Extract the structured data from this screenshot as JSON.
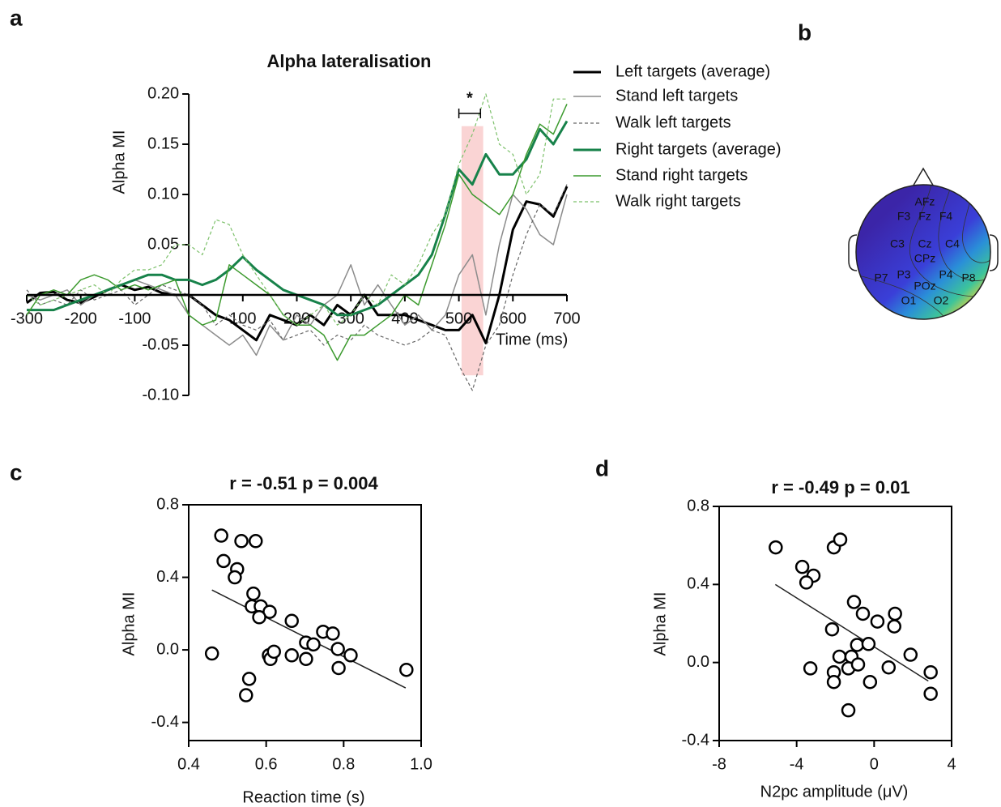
{
  "panels": [
    "a",
    "b",
    "c",
    "d"
  ],
  "topomap": {
    "electrodes": [
      "AFz",
      "F3",
      "Fz",
      "F4",
      "C3",
      "Cz",
      "C4",
      "CPz",
      "P7",
      "P3",
      "P4",
      "P8",
      "POz",
      "O1",
      "O2"
    ]
  },
  "chart_data": [
    {
      "type": "line",
      "title": "Alpha lateralisation",
      "y_label": "Alpha MI",
      "x_label": "Time (ms)",
      "x": [
        -300,
        -275,
        -250,
        -225,
        -200,
        -175,
        -150,
        -125,
        -100,
        -75,
        -50,
        -25,
        0,
        25,
        50,
        75,
        100,
        125,
        150,
        175,
        200,
        225,
        250,
        275,
        300,
        325,
        350,
        375,
        400,
        425,
        450,
        475,
        500,
        525,
        550,
        575,
        600,
        625,
        650,
        675,
        700
      ],
      "series": [
        {
          "name": "Left targets (average)",
          "color": "#000000",
          "width": 3,
          "dash": false,
          "values": [
            -0.008,
            0.002,
            0.003,
            -0.005,
            -0.008,
            -0.002,
            0.005,
            0.01,
            0.005,
            0.008,
            0.002,
            0,
            0,
            -0.01,
            -0.02,
            -0.025,
            -0.035,
            -0.045,
            -0.02,
            -0.025,
            -0.03,
            -0.02,
            -0.03,
            -0.01,
            -0.02,
            0,
            -0.02,
            -0.02,
            -0.02,
            -0.025,
            -0.03,
            -0.035,
            -0.035,
            -0.02,
            -0.048,
            0,
            0.065,
            0.093,
            0.09,
            0.078,
            0.108
          ]
        },
        {
          "name": "Stand left targets",
          "color": "#8c8c8c",
          "width": 1.5,
          "dash": false,
          "values": [
            0,
            -0.005,
            0,
            0.005,
            -0.01,
            0,
            0.005,
            0.01,
            0.015,
            0.01,
            0.005,
            0,
            -0.02,
            -0.03,
            -0.04,
            -0.05,
            -0.04,
            -0.06,
            -0.03,
            -0.045,
            -0.02,
            -0.03,
            -0.01,
            0,
            0.03,
            -0.01,
            0.01,
            -0.01,
            -0.03,
            -0.02,
            -0.035,
            -0.02,
            0.02,
            0.04,
            -0.02,
            0.05,
            0.1,
            0.085,
            0.06,
            0.05,
            0.1
          ]
        },
        {
          "name": "Walk left targets",
          "color": "#666666",
          "width": 1.2,
          "dash": true,
          "values": [
            0.005,
            -0.01,
            -0.005,
            -0.01,
            0.005,
            -0.005,
            0,
            0.005,
            -0.01,
            0,
            0.01,
            0.005,
            0,
            -0.01,
            -0.03,
            -0.02,
            -0.03,
            -0.035,
            -0.025,
            -0.045,
            -0.04,
            -0.035,
            -0.05,
            -0.04,
            -0.045,
            -0.03,
            -0.04,
            -0.045,
            -0.05,
            -0.045,
            -0.035,
            -0.04,
            -0.07,
            -0.095,
            -0.05,
            -0.03,
            0.02,
            0.06,
            0.09,
            0.08,
            0.11
          ]
        },
        {
          "name": "Right targets (average)",
          "color": "#17824a",
          "width": 3,
          "dash": false,
          "values": [
            -0.015,
            -0.015,
            -0.015,
            -0.01,
            -0.005,
            0,
            0.005,
            0.01,
            0.015,
            0.02,
            0.02,
            0.015,
            0.015,
            0.01,
            0.015,
            0.025,
            0.038,
            0.025,
            0.015,
            0.005,
            0,
            -0.005,
            -0.01,
            -0.02,
            -0.02,
            -0.015,
            -0.01,
            0,
            0.01,
            0.02,
            0.04,
            0.08,
            0.125,
            0.11,
            0.14,
            0.12,
            0.12,
            0.135,
            0.165,
            0.15,
            0.173
          ]
        },
        {
          "name": "Stand right targets",
          "color": "#3c9a2e",
          "width": 1.5,
          "dash": false,
          "values": [
            -0.02,
            0,
            0.005,
            0,
            0.015,
            0.02,
            0.015,
            0.005,
            0.01,
            0.005,
            0.01,
            0.015,
            -0.02,
            -0.03,
            -0.025,
            0.03,
            0.02,
            0.01,
            0,
            -0.02,
            -0.03,
            -0.03,
            -0.04,
            -0.065,
            -0.04,
            -0.04,
            -0.03,
            -0.02,
            0,
            -0.01,
            0.03,
            0.07,
            0.12,
            0.1,
            0.09,
            0.08,
            0.1,
            0.14,
            0.17,
            0.16,
            0.19
          ]
        },
        {
          "name": "Walk right targets",
          "color": "#7cc06a",
          "width": 1.2,
          "dash": true,
          "values": [
            0,
            -0.01,
            -0.005,
            0,
            0.005,
            0.01,
            0,
            0.015,
            0.025,
            0.025,
            0.03,
            0.05,
            0.05,
            0.04,
            0.075,
            0.07,
            0.04,
            0.02,
            0,
            -0.02,
            -0.03,
            -0.02,
            -0.01,
            -0.03,
            -0.02,
            0,
            -0.01,
            0.02,
            0.01,
            0.03,
            0.06,
            0.08,
            0.13,
            0.16,
            0.2,
            0.15,
            0.14,
            0.1,
            0.12,
            0.195,
            0.195
          ]
        }
      ],
      "xlim": [
        -300,
        700
      ],
      "ylim": [
        -0.1,
        0.2
      ],
      "xticks": [
        -300,
        -200,
        -100,
        100,
        200,
        300,
        400,
        500,
        600,
        700
      ],
      "yticks": [
        {
          "value": -0.1,
          "label": "-0.10"
        },
        {
          "value": -0.05,
          "label": "-0.05"
        },
        {
          "value": 0.05,
          "label": "0.05"
        },
        {
          "value": 0.1,
          "label": "0.10"
        },
        {
          "value": 0.15,
          "label": "0.15"
        },
        {
          "value": 0.2,
          "label": "0.20"
        }
      ],
      "shaded_region": {
        "xlim": [
          505,
          545
        ],
        "ylim": [
          -0.08,
          0.168
        ],
        "color": "#f9c9c9"
      },
      "significance": {
        "label": "*",
        "x": [
          500,
          540
        ]
      },
      "legend": "upper right"
    },
    {
      "type": "scatter",
      "title": "r = -0.51 p = 0.004",
      "x_label": "Reaction time (s)",
      "y_label": "Alpha MI",
      "x": [
        0.484,
        0.49,
        0.536,
        0.573,
        0.525,
        0.519,
        0.567,
        0.563,
        0.586,
        0.609,
        0.582,
        0.46,
        0.556,
        0.548,
        0.607,
        0.611,
        0.62,
        0.666,
        0.666,
        0.703,
        0.703,
        0.722,
        0.747,
        0.772,
        0.785,
        0.787,
        0.818,
        0.962
      ],
      "values": [
        0.63,
        0.49,
        0.6,
        0.6,
        0.445,
        0.4,
        0.31,
        0.24,
        0.24,
        0.21,
        0.18,
        -0.02,
        -0.16,
        -0.25,
        -0.03,
        -0.05,
        -0.01,
        0.16,
        -0.03,
        0.04,
        -0.05,
        0.03,
        0.1,
        0.09,
        0.005,
        -0.1,
        -0.03,
        -0.11
      ],
      "trendline": {
        "x": [
          0.46,
          0.96
        ],
        "y": [
          0.33,
          -0.21
        ]
      },
      "xlim": [
        0.4,
        1.0
      ],
      "ylim": [
        -0.5,
        0.8
      ],
      "xticks": [
        0.4,
        0.6,
        0.8,
        {
          "value": 1.0,
          "label": "1.0"
        }
      ],
      "yticks": [
        -0.4,
        {
          "value": 0,
          "label": "0.0"
        },
        0.4,
        0.8
      ]
    },
    {
      "type": "scatter",
      "title": "r = -0.49 p = 0.01",
      "x_label": "N2pc amplitude (μV)",
      "y_label": "Alpha MI",
      "x": [
        -5.08,
        -3.71,
        -3.13,
        -3.5,
        -2.08,
        -1.75,
        -1.04,
        -0.58,
        0.17,
        1.08,
        1.04,
        -2.17,
        -3.29,
        -1.79,
        -0.88,
        -0.29,
        -1.17,
        -1.33,
        -0.83,
        -2.08,
        -2.08,
        -0.21,
        0.75,
        1.88,
        2.92,
        2.92,
        -1.33
      ],
      "values": [
        0.59,
        0.49,
        0.445,
        0.41,
        0.59,
        0.63,
        0.31,
        0.25,
        0.21,
        0.25,
        0.185,
        0.17,
        -0.03,
        0.03,
        0.09,
        0.095,
        0.03,
        -0.03,
        -0.01,
        -0.05,
        -0.1,
        -0.1,
        -0.025,
        0.04,
        -0.05,
        -0.16,
        -0.245
      ],
      "trendline": {
        "x": [
          -5.1,
          2.8
        ],
        "y": [
          0.4,
          -0.095
        ]
      },
      "xlim": [
        -8,
        4
      ],
      "ylim": [
        -0.4,
        0.8
      ],
      "xticks": [
        -8,
        -4,
        0,
        4
      ],
      "yticks": [
        {
          "value": -0.4,
          "label": "-0.4"
        },
        {
          "value": 0,
          "label": "0.0"
        },
        0.4,
        0.8
      ]
    }
  ]
}
